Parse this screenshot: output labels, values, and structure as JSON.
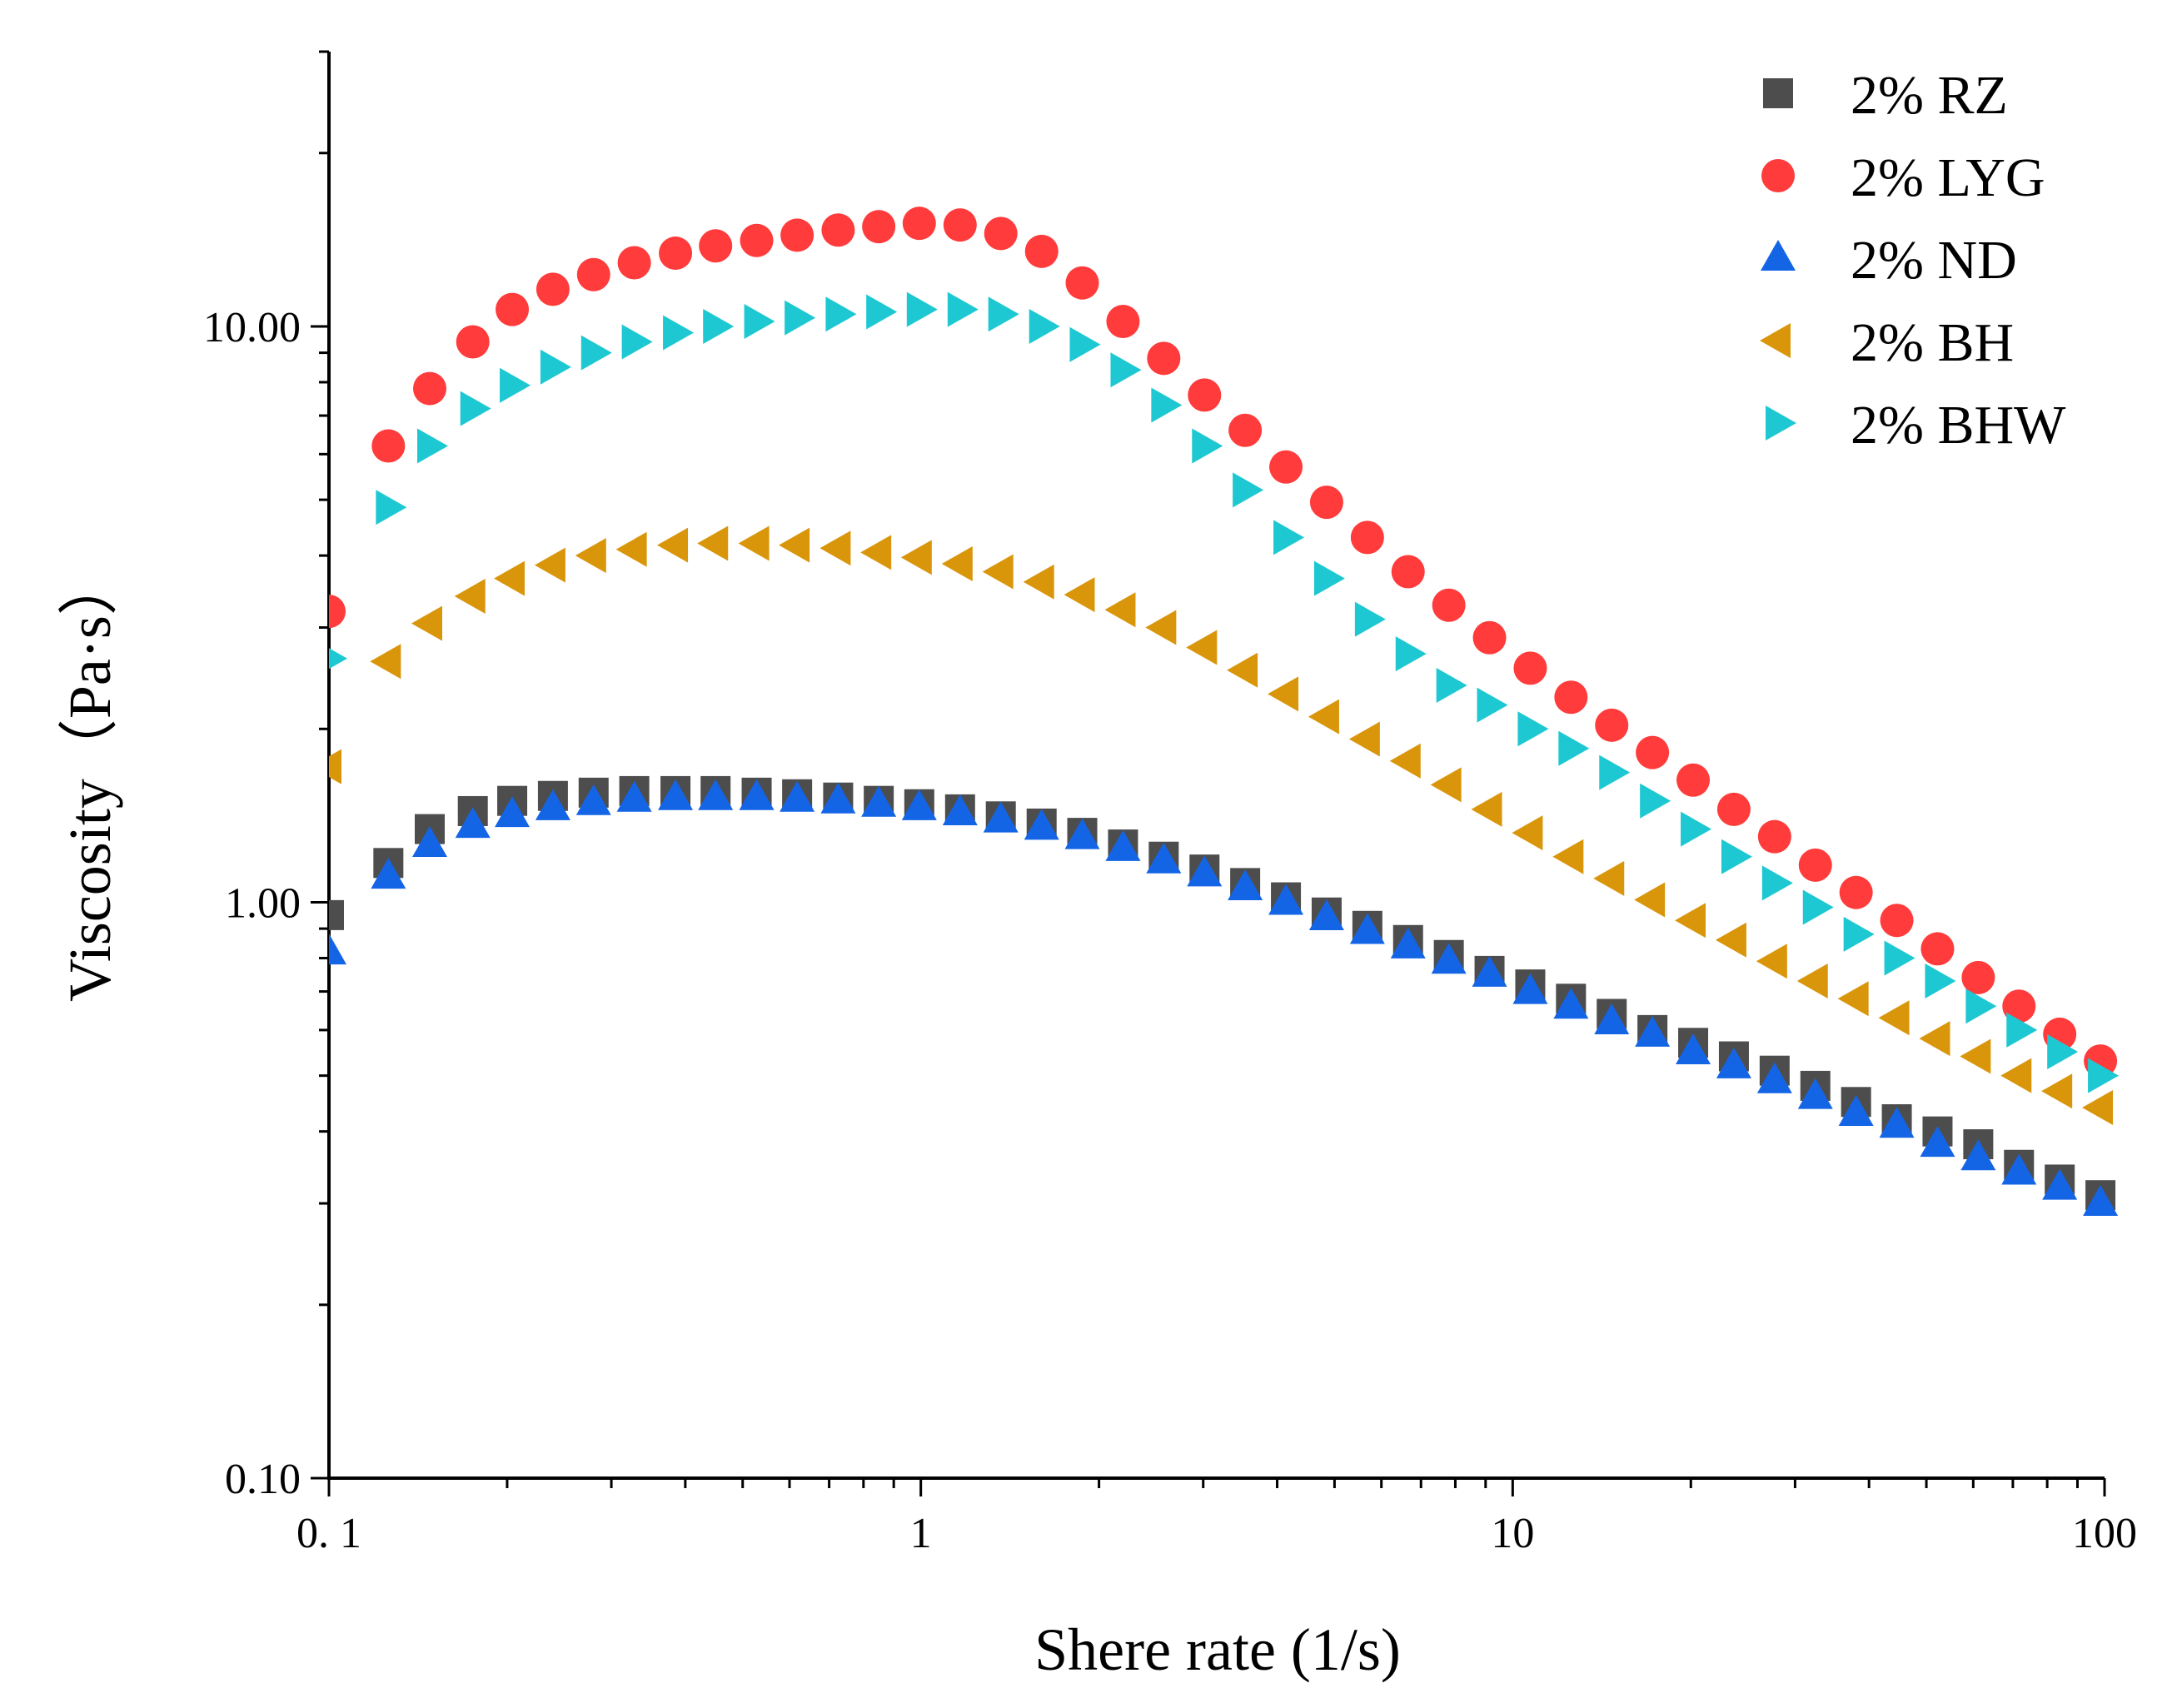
{
  "chart_data": {
    "type": "scatter",
    "x_scale": "log",
    "y_scale": "log",
    "xlabel": "Shere rate (1/s)",
    "ylabel": "Viscosity（Pa·s）",
    "xlim": [
      0.1,
      100
    ],
    "ylim": [
      0.1,
      30
    ],
    "x_ticks": [
      {
        "value": 0.1,
        "label": "0. 1"
      },
      {
        "value": 1,
        "label": "1"
      },
      {
        "value": 10,
        "label": "10"
      },
      {
        "value": 100,
        "label": "100"
      }
    ],
    "y_ticks": [
      {
        "value": 0.1,
        "label": "0.10"
      },
      {
        "value": 1,
        "label": "1.00"
      },
      {
        "value": 10,
        "label": "10.00"
      }
    ],
    "legend_position": "top-right",
    "series": [
      {
        "name": "2% RZ",
        "marker": "square",
        "color": "#4d4d4d",
        "x": [
          0.1,
          0.126,
          0.148,
          0.175,
          0.204,
          0.239,
          0.28,
          0.328,
          0.385,
          0.45,
          0.528,
          0.618,
          0.725,
          0.849,
          0.994,
          1.165,
          1.365,
          1.6,
          1.874,
          2.196,
          2.573,
          3.015,
          3.532,
          4.139,
          4.849,
          5.682,
          6.657,
          7.8,
          9.139,
          10.708,
          12.546,
          14.7,
          17.224,
          20.181,
          23.646,
          27.706,
          32.463,
          38.036,
          44.567,
          52.218,
          61.183,
          71.688,
          83.996,
          98.417
        ],
        "y": [
          0.95,
          1.17,
          1.34,
          1.44,
          1.5,
          1.53,
          1.55,
          1.56,
          1.56,
          1.56,
          1.55,
          1.54,
          1.52,
          1.5,
          1.48,
          1.45,
          1.41,
          1.37,
          1.32,
          1.26,
          1.2,
          1.14,
          1.08,
          1.02,
          0.96,
          0.91,
          0.86,
          0.81,
          0.76,
          0.72,
          0.68,
          0.64,
          0.6,
          0.57,
          0.54,
          0.51,
          0.48,
          0.45,
          0.42,
          0.4,
          0.38,
          0.35,
          0.33,
          0.31
        ]
      },
      {
        "name": "2% LYG",
        "marker": "circle",
        "color": "#ff3b3b",
        "x": [
          0.1,
          0.126,
          0.148,
          0.175,
          0.204,
          0.239,
          0.28,
          0.328,
          0.385,
          0.45,
          0.528,
          0.618,
          0.725,
          0.849,
          0.994,
          1.165,
          1.365,
          1.6,
          1.874,
          2.196,
          2.573,
          3.015,
          3.532,
          4.139,
          4.849,
          5.682,
          6.657,
          7.8,
          9.139,
          10.708,
          12.546,
          14.7,
          17.224,
          20.181,
          23.646,
          27.706,
          32.463,
          38.036,
          44.567,
          52.218,
          61.183,
          71.688,
          83.996,
          98.417
        ],
        "y": [
          3.2,
          6.2,
          7.8,
          9.4,
          10.7,
          11.6,
          12.3,
          12.9,
          13.4,
          13.8,
          14.1,
          14.4,
          14.7,
          14.9,
          15.1,
          15.0,
          14.5,
          13.5,
          11.9,
          10.2,
          8.8,
          7.6,
          6.6,
          5.7,
          4.95,
          4.3,
          3.75,
          3.28,
          2.88,
          2.55,
          2.27,
          2.03,
          1.82,
          1.63,
          1.45,
          1.3,
          1.16,
          1.04,
          0.93,
          0.83,
          0.74,
          0.66,
          0.59,
          0.53
        ]
      },
      {
        "name": "2% ND",
        "marker": "triangle-up",
        "color": "#1464e6",
        "x": [
          0.1,
          0.126,
          0.148,
          0.175,
          0.204,
          0.239,
          0.28,
          0.328,
          0.385,
          0.45,
          0.528,
          0.618,
          0.725,
          0.849,
          0.994,
          1.165,
          1.365,
          1.6,
          1.874,
          2.196,
          2.573,
          3.015,
          3.532,
          4.139,
          4.849,
          5.682,
          6.657,
          7.8,
          9.139,
          10.708,
          12.546,
          14.7,
          17.224,
          20.181,
          23.646,
          27.706,
          32.463,
          38.036,
          44.567,
          52.218,
          61.183,
          71.688,
          83.996,
          98.417
        ],
        "y": [
          0.82,
          1.11,
          1.26,
          1.36,
          1.42,
          1.46,
          1.49,
          1.51,
          1.52,
          1.52,
          1.52,
          1.51,
          1.5,
          1.48,
          1.46,
          1.43,
          1.39,
          1.35,
          1.3,
          1.24,
          1.18,
          1.12,
          1.06,
          1.0,
          0.94,
          0.89,
          0.84,
          0.79,
          0.75,
          0.7,
          0.66,
          0.62,
          0.59,
          0.55,
          0.52,
          0.49,
          0.46,
          0.43,
          0.41,
          0.38,
          0.36,
          0.34,
          0.32,
          0.3
        ]
      },
      {
        "name": "2% BH",
        "marker": "triangle-left",
        "color": "#d9960b",
        "x": [
          0.1,
          0.126,
          0.148,
          0.175,
          0.204,
          0.239,
          0.28,
          0.328,
          0.385,
          0.45,
          0.528,
          0.618,
          0.725,
          0.849,
          0.994,
          1.165,
          1.365,
          1.6,
          1.874,
          2.196,
          2.573,
          3.015,
          3.532,
          4.139,
          4.849,
          5.682,
          6.657,
          7.8,
          9.139,
          10.708,
          12.546,
          14.7,
          17.224,
          20.181,
          23.646,
          27.706,
          32.463,
          38.036,
          44.567,
          52.218,
          61.183,
          71.688,
          83.996,
          98.417
        ],
        "y": [
          1.72,
          2.62,
          3.05,
          3.4,
          3.65,
          3.85,
          4.0,
          4.1,
          4.17,
          4.2,
          4.2,
          4.17,
          4.12,
          4.05,
          3.97,
          3.87,
          3.75,
          3.6,
          3.42,
          3.22,
          3.0,
          2.77,
          2.53,
          2.3,
          2.1,
          1.92,
          1.76,
          1.6,
          1.45,
          1.32,
          1.2,
          1.1,
          1.01,
          0.93,
          0.86,
          0.79,
          0.73,
          0.68,
          0.63,
          0.58,
          0.54,
          0.5,
          0.47,
          0.44
        ]
      },
      {
        "name": "2% BHW",
        "marker": "triangle-right",
        "color": "#1ec8d2",
        "x": [
          0.1,
          0.126,
          0.148,
          0.175,
          0.204,
          0.239,
          0.28,
          0.328,
          0.385,
          0.45,
          0.528,
          0.618,
          0.725,
          0.849,
          0.994,
          1.165,
          1.365,
          1.6,
          1.874,
          2.196,
          2.573,
          3.015,
          3.532,
          4.139,
          4.849,
          5.682,
          6.657,
          7.8,
          9.139,
          10.708,
          12.546,
          14.7,
          17.224,
          20.181,
          23.646,
          27.706,
          32.463,
          38.036,
          44.567,
          52.218,
          61.183,
          71.688,
          83.996,
          98.417
        ],
        "y": [
          2.65,
          4.85,
          6.2,
          7.2,
          7.9,
          8.5,
          9.0,
          9.4,
          9.75,
          10.0,
          10.2,
          10.35,
          10.5,
          10.6,
          10.7,
          10.7,
          10.5,
          10.0,
          9.3,
          8.4,
          7.3,
          6.2,
          5.2,
          4.3,
          3.65,
          3.1,
          2.7,
          2.38,
          2.2,
          2.0,
          1.85,
          1.68,
          1.5,
          1.34,
          1.2,
          1.08,
          0.98,
          0.88,
          0.8,
          0.73,
          0.66,
          0.6,
          0.55,
          0.5
        ]
      }
    ]
  }
}
